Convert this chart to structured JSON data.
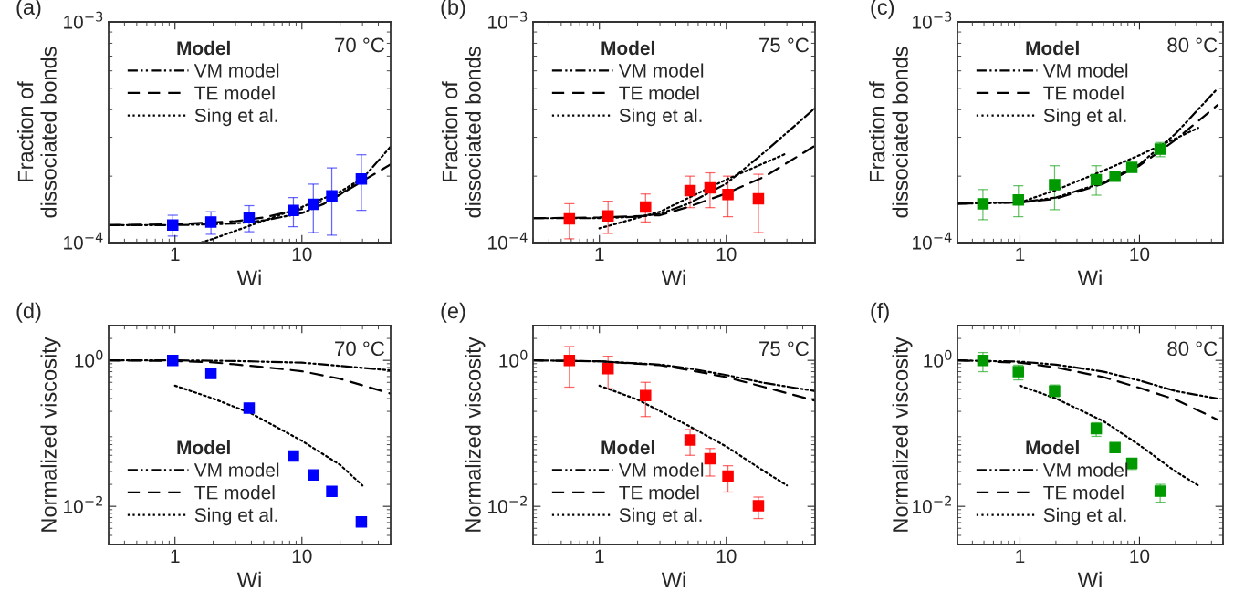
{
  "chart_data": [
    {
      "type": "scatter",
      "title": "(a)",
      "xlabel": "Wi",
      "ylabel": "Fraction of\ndissociated bonds",
      "legend_title": "Model",
      "legend": "top left",
      "log": "xy",
      "annotations": [
        "70 °C"
      ],
      "xlim": [
        0.3,
        50
      ],
      "xticks": [
        1,
        10
      ],
      "ylim": [
        0.0001,
        0.001
      ],
      "yticks": [
        {
          "value": 0.0001,
          "label": "10$^{−4}$"
        },
        {
          "value": 0.001,
          "label": "10$^{−3}$"
        }
      ],
      "series": [
        {
          "marker": "square",
          "color": "#0000ff",
          "x": [
            0.96,
            1.92,
            3.84,
            8.57,
            12.3,
            17.2,
            29.4
          ],
          "values": [
            0.00012,
            0.000124,
            0.00013,
            0.00014,
            0.000149,
            0.000163,
            0.000194
          ],
          "errors": [
            [
              0.000107,
              0.000133
            ],
            [
              0.000109,
              0.000138
            ],
            [
              0.000112,
              0.000147
            ],
            [
              0.000118,
              0.00016
            ],
            [
              0.000111,
              0.000184
            ],
            [
              0.000108,
              0.000218
            ],
            [
              0.00014,
              0.00025
            ]
          ]
        },
        {
          "type": "line",
          "name": "VM model",
          "line_style": "dashdot",
          "color": "#000000",
          "x": [
            0.3,
            1,
            2,
            3,
            5,
            10,
            15,
            20,
            30,
            50
          ],
          "values": [
            0.00012,
            0.00012,
            0.000121,
            0.000122,
            0.000126,
            0.000136,
            0.00015,
            0.000165,
            0.000195,
            0.000272
          ]
        },
        {
          "type": "line",
          "name": "TE model",
          "line_style": "dashed",
          "color": "#000000",
          "x": [
            0.3,
            1,
            3,
            5,
            10,
            20,
            30,
            50
          ],
          "values": [
            0.00012,
            0.000121,
            0.000125,
            0.00013,
            0.000142,
            0.000165,
            0.00019,
            0.000226
          ]
        },
        {
          "type": "line",
          "name": "Sing et al.",
          "line_style": "dotted",
          "color": "#000000",
          "x": [
            1.6,
            2,
            4,
            10,
            20,
            30
          ],
          "values": [
            0.0001,
            0.000104,
            0.00012,
            0.000145,
            0.00017,
            0.000196
          ]
        }
      ]
    },
    {
      "type": "scatter",
      "title": "(b)",
      "xlabel": "Wi",
      "ylabel": "Fraction of\ndissociated bonds",
      "legend_title": "Model",
      "legend": "top left",
      "log": "xy",
      "annotations": [
        "75 °C"
      ],
      "xlim": [
        0.3,
        50
      ],
      "xticks": [
        1,
        10
      ],
      "ylim": [
        0.0001,
        0.001
      ],
      "yticks": [
        {
          "value": 0.0001,
          "label": "10$^{−4}$"
        },
        {
          "value": 0.001,
          "label": "10$^{−3}$"
        }
      ],
      "series": [
        {
          "marker": "square",
          "color": "#ff0000",
          "x": [
            0.58,
            1.17,
            2.31,
            5.18,
            7.44,
            10.3,
            17.9
          ],
          "values": [
            0.000128,
            0.000132,
            0.000145,
            0.000172,
            0.000177,
            0.000165,
            0.000158
          ],
          "errors": [
            [
              0.000104,
              0.00015
            ],
            [
              0.00011,
              0.000154
            ],
            [
              0.000124,
              0.000166
            ],
            [
              0.000144,
              0.0002
            ],
            [
              0.000144,
              0.000207
            ],
            [
              0.000131,
              0.0002
            ],
            [
              0.000111,
              0.000204
            ]
          ]
        },
        {
          "type": "line",
          "name": "VM model",
          "line_style": "dashdot",
          "color": "#000000",
          "x": [
            0.3,
            1,
            2,
            3,
            5,
            10,
            20,
            50
          ],
          "values": [
            0.000129,
            0.000129,
            0.000131,
            0.000135,
            0.00015,
            0.000185,
            0.000257,
            0.000407
          ]
        },
        {
          "type": "line",
          "name": "TE model",
          "line_style": "dashed",
          "color": "#000000",
          "x": [
            0.3,
            1,
            3,
            5,
            10,
            20,
            50
          ],
          "values": [
            0.000129,
            0.00013,
            0.000133,
            0.000145,
            0.000167,
            0.000199,
            0.000275
          ]
        },
        {
          "type": "line",
          "name": "Sing et al.",
          "line_style": "dotted",
          "color": "#000000",
          "x": [
            1,
            3,
            10,
            30
          ],
          "values": [
            0.000116,
            0.000138,
            0.000193,
            0.000254
          ]
        }
      ]
    },
    {
      "type": "scatter",
      "title": "(c)",
      "xlabel": "Wi",
      "ylabel": "Fraction of\ndissociated bonds",
      "legend_title": "Model",
      "legend": "top left",
      "log": "xy",
      "annotations": [
        "80 °C"
      ],
      "xlim": [
        0.3,
        50
      ],
      "xticks": [
        1,
        10
      ],
      "ylim": [
        0.0001,
        0.001
      ],
      "yticks": [
        {
          "value": 0.0001,
          "label": "10$^{−4}$"
        },
        {
          "value": 0.001,
          "label": "10$^{−3}$"
        }
      ],
      "series": [
        {
          "marker": "square",
          "color": "#009900",
          "x": [
            0.49,
            0.97,
            1.95,
            4.35,
            6.24,
            8.63,
            14.9
          ],
          "values": [
            0.00015,
            0.000156,
            0.000183,
            0.000193,
            0.0002,
            0.000219,
            0.000265
          ],
          "errors": [
            [
              0.000127,
              0.000174
            ],
            [
              0.000131,
              0.000181
            ],
            [
              0.000141,
              0.000223
            ],
            [
              0.000164,
              0.000223
            ],
            null,
            null,
            [
              0.000245,
              0.000284
            ]
          ]
        },
        {
          "type": "line",
          "name": "VM model",
          "line_style": "dashdot",
          "color": "#000000",
          "x": [
            0.3,
            1,
            2,
            5,
            10,
            20,
            45
          ],
          "values": [
            0.00015,
            0.000152,
            0.00016,
            0.000187,
            0.000226,
            0.000311,
            0.000499
          ]
        },
        {
          "type": "line",
          "name": "TE model",
          "line_style": "dashed",
          "color": "#000000",
          "x": [
            0.3,
            1,
            2,
            5,
            10,
            20,
            45
          ],
          "values": [
            0.00015,
            0.000152,
            0.000158,
            0.000185,
            0.000223,
            0.000292,
            0.00042
          ]
        },
        {
          "type": "line",
          "name": "Sing et al.",
          "line_style": "dotted",
          "color": "#000000",
          "x": [
            1,
            2,
            5,
            10,
            20,
            31
          ],
          "values": [
            0.000152,
            0.000173,
            0.000212,
            0.000249,
            0.000296,
            0.000331
          ]
        }
      ]
    },
    {
      "type": "scatter",
      "title": "(d)",
      "xlabel": "Wi",
      "ylabel": "Normalized viscosity",
      "legend_title": "Model",
      "legend": "bottom left",
      "log": "xy",
      "annotations": [
        "70 °C"
      ],
      "xlim": [
        0.3,
        50
      ],
      "xticks": [
        1,
        10
      ],
      "ylim": [
        0.003,
        3
      ],
      "yticks": [
        {
          "value": 0.01,
          "label": "10$^{−2}$"
        },
        {
          "value": 1,
          "label": "10$^{0}$"
        }
      ],
      "series": [
        {
          "marker": "square",
          "color": "#0000ff",
          "x": [
            0.96,
            1.92,
            3.84,
            8.57,
            12.3,
            17.2,
            29.4
          ],
          "values": [
            1.0,
            0.66,
            0.222,
            0.049,
            0.027,
            0.016,
            0.0061
          ]
        },
        {
          "type": "line",
          "name": "VM model",
          "line_style": "dashdot",
          "color": "#000000",
          "x": [
            0.3,
            1,
            3,
            10,
            20,
            50
          ],
          "values": [
            1.0,
            1.0,
            0.98,
            0.93,
            0.84,
            0.73
          ]
        },
        {
          "type": "line",
          "name": "TE model",
          "line_style": "dashed",
          "color": "#000000",
          "x": [
            0.3,
            1,
            2,
            5,
            10,
            20,
            50
          ],
          "values": [
            1.0,
            0.98,
            0.94,
            0.81,
            0.71,
            0.56,
            0.35
          ]
        },
        {
          "type": "line",
          "name": "Sing et al.",
          "line_style": "dotted",
          "color": "#000000",
          "x": [
            1,
            2,
            4,
            10,
            20,
            30
          ],
          "values": [
            0.45,
            0.3,
            0.187,
            0.079,
            0.037,
            0.0193
          ]
        }
      ]
    },
    {
      "type": "scatter",
      "title": "(e)",
      "xlabel": "Wi",
      "ylabel": "Normalized viscosity",
      "legend_title": "Model",
      "legend": "bottom left",
      "log": "xy",
      "annotations": [
        "75 °C"
      ],
      "xlim": [
        0.3,
        50
      ],
      "xticks": [
        1,
        10
      ],
      "ylim": [
        0.003,
        3
      ],
      "yticks": [
        {
          "value": 0.01,
          "label": "10$^{−2}$"
        },
        {
          "value": 1,
          "label": "10$^{0}$"
        }
      ],
      "series": [
        {
          "marker": "square",
          "color": "#ff0000",
          "x": [
            0.58,
            1.17,
            2.31,
            5.18,
            7.44,
            10.3,
            17.9
          ],
          "values": [
            1.0,
            0.77,
            0.33,
            0.081,
            0.045,
            0.026,
            0.0102
          ],
          "errors": [
            [
              0.43,
              1.55
            ],
            [
              0.41,
              1.14
            ],
            [
              0.17,
              0.5
            ],
            [
              0.05,
              0.113
            ],
            [
              0.026,
              0.062
            ],
            [
              0.0157,
              0.036
            ],
            [
              0.0068,
              0.0134
            ]
          ]
        },
        {
          "type": "line",
          "name": "VM model",
          "line_style": "dashdot",
          "color": "#000000",
          "x": [
            0.3,
            1,
            3,
            5,
            10,
            20,
            50
          ],
          "values": [
            1.0,
            0.97,
            0.875,
            0.78,
            0.63,
            0.49,
            0.38
          ]
        },
        {
          "type": "line",
          "name": "TE model",
          "line_style": "dashed",
          "color": "#000000",
          "x": [
            0.3,
            1,
            3,
            5,
            10,
            20,
            50
          ],
          "values": [
            1.0,
            0.97,
            0.86,
            0.74,
            0.59,
            0.43,
            0.28
          ]
        },
        {
          "type": "line",
          "name": "Sing et al.",
          "line_style": "dotted",
          "color": "#000000",
          "x": [
            1,
            2,
            5,
            10,
            20,
            30
          ],
          "values": [
            0.45,
            0.29,
            0.128,
            0.066,
            0.03,
            0.0194
          ]
        }
      ]
    },
    {
      "type": "scatter",
      "title": "(f)",
      "xlabel": "Wi",
      "ylabel": "Normalized viscosity",
      "legend_title": "Model",
      "legend": "bottom left",
      "log": "xy",
      "annotations": [
        "80 °C"
      ],
      "xlim": [
        0.3,
        50
      ],
      "xticks": [
        1,
        10
      ],
      "ylim": [
        0.003,
        3
      ],
      "yticks": [
        {
          "value": 0.01,
          "label": "10$^{−2}$"
        },
        {
          "value": 1,
          "label": "10$^{0}$"
        }
      ],
      "series": [
        {
          "marker": "square",
          "color": "#009900",
          "x": [
            0.49,
            0.97,
            1.95,
            4.35,
            6.24,
            8.63,
            14.9
          ],
          "values": [
            1.0,
            0.7,
            0.38,
            0.116,
            0.064,
            0.039,
            0.0161
          ],
          "errors": [
            [
              0.7,
              1.28
            ],
            [
              0.54,
              0.86
            ],
            [
              0.31,
              0.46
            ],
            [
              0.091,
              0.14
            ],
            null,
            [
              0.032,
              0.045
            ],
            [
              0.0114,
              0.02
            ]
          ]
        },
        {
          "type": "line",
          "name": "VM model",
          "line_style": "dashdot",
          "color": "#000000",
          "x": [
            0.3,
            1,
            2,
            5,
            10,
            20,
            45
          ],
          "values": [
            1.0,
            0.96,
            0.875,
            0.7,
            0.53,
            0.38,
            0.3
          ]
        },
        {
          "type": "line",
          "name": "TE model",
          "line_style": "dashed",
          "color": "#000000",
          "x": [
            0.3,
            1,
            2,
            5,
            10,
            20,
            45
          ],
          "values": [
            1.0,
            0.93,
            0.8,
            0.59,
            0.42,
            0.29,
            0.154
          ]
        },
        {
          "type": "line",
          "name": "Sing et al.",
          "line_style": "dotted",
          "color": "#000000",
          "x": [
            1,
            2,
            5,
            10,
            20,
            31
          ],
          "values": [
            0.45,
            0.3,
            0.147,
            0.069,
            0.03,
            0.0194
          ]
        }
      ]
    }
  ]
}
